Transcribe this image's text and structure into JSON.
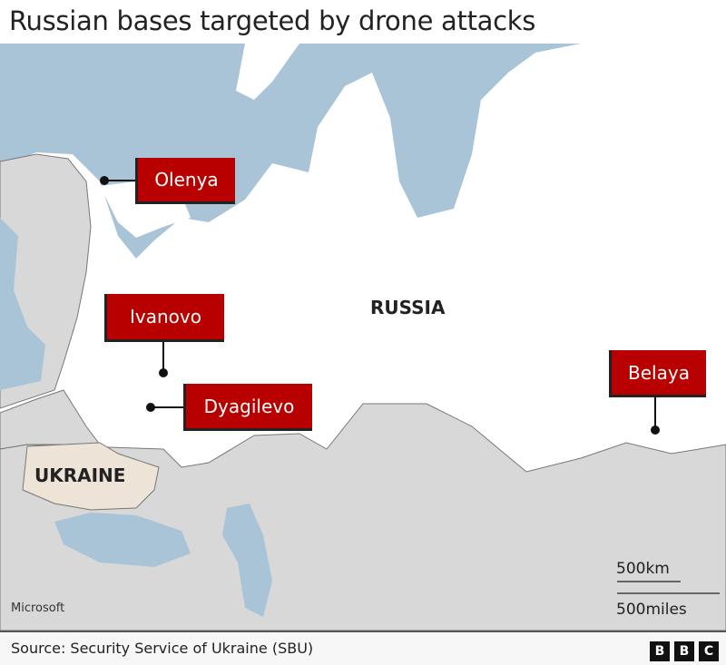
{
  "title": "Russian bases targeted by drone attacks",
  "colors": {
    "sea": "#a9c4d6",
    "land_other": "#d8d8d8",
    "russia": "#ffffff",
    "ukraine": "#ede3d6",
    "label_bg": "#b80000"
  },
  "countries": {
    "russia": "RUSSIA",
    "ukraine": "UKRAINE"
  },
  "bases": [
    {
      "name": "Olenya"
    },
    {
      "name": "Ivanovo"
    },
    {
      "name": "Dyagilevo"
    },
    {
      "name": "Belaya"
    }
  ],
  "scale": {
    "km": "500km",
    "miles": "500miles"
  },
  "attribution": "Microsoft",
  "source": "Source: Security Service of Ukraine (SBU)",
  "logo": [
    "B",
    "B",
    "C"
  ]
}
